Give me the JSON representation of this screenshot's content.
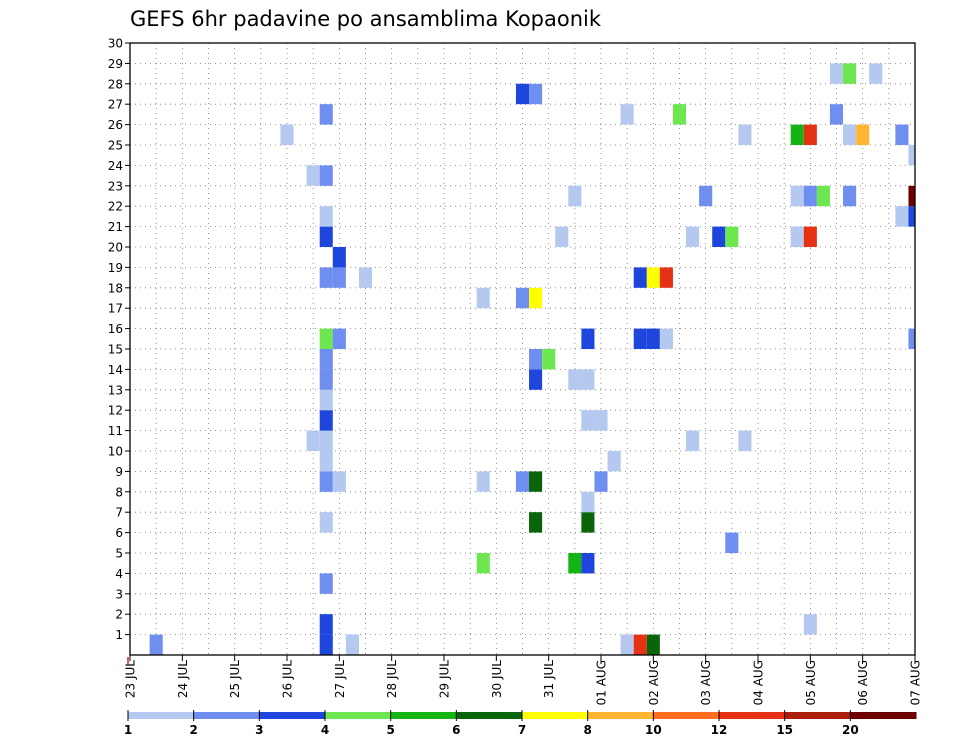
{
  "chart_data": {
    "type": "heatmap",
    "title": "GEFS 6hr padavine po ansamblima Kopaonik",
    "xlabel": "",
    "ylabel": "",
    "x_start": "23 JUL 00Z",
    "x_end": "07 AUG 00Z",
    "time_step_hours": 6,
    "x_tick_labels": [
      "23 JUL",
      "24 JUL",
      "25 JUL",
      "26 JUL",
      "27 JUL",
      "28 JUL",
      "29 JUL",
      "30 JUL",
      "31 JUL",
      "01 AUG",
      "02 AUG",
      "03 AUG",
      "04 AUG",
      "05 AUG",
      "06 AUG",
      "07 AUG"
    ],
    "y_tick_labels": [
      "1",
      "2",
      "3",
      "4",
      "5",
      "6",
      "7",
      "8",
      "9",
      "10",
      "11",
      "12",
      "13",
      "14",
      "15",
      "16",
      "17",
      "18",
      "19",
      "20",
      "21",
      "22",
      "23",
      "24",
      "25",
      "26",
      "27",
      "28",
      "29",
      "30"
    ],
    "ylim": [
      0,
      30
    ],
    "grid": true,
    "legend_position": "bottom",
    "legend_levels": [
      "1",
      "2",
      "3",
      "4",
      "5",
      "6",
      "7",
      "8",
      "10",
      "12",
      "15",
      "20"
    ],
    "colors": [
      "#b4c8f0",
      "#6e8ef0",
      "#1e46dc",
      "#6ee650",
      "#14b414",
      "#0a640a",
      "#ffff00",
      "#ffb432",
      "#ff6e1e",
      "#e63214",
      "#aa1e0a",
      "#6e0000"
    ],
    "cells": [
      {
        "m": 0,
        "t": "23 JUL 12Z",
        "c": 1
      },
      {
        "m": 0,
        "t": "26 JUL 18Z",
        "c": 2
      },
      {
        "m": 0,
        "t": "27 JUL 06Z",
        "c": 0
      },
      {
        "m": 0,
        "t": "01 AUG 12Z",
        "c": 0
      },
      {
        "m": 0,
        "t": "01 AUG 18Z",
        "c": 9
      },
      {
        "m": 0,
        "t": "02 AUG 00Z",
        "c": 5
      },
      {
        "m": 1,
        "t": "26 JUL 18Z",
        "c": 2
      },
      {
        "m": 1,
        "t": "05 AUG 00Z",
        "c": 0
      },
      {
        "m": 3,
        "t": "26 JUL 18Z",
        "c": 1
      },
      {
        "m": 4,
        "t": "29 JUL 18Z",
        "c": 3
      },
      {
        "m": 4,
        "t": "31 JUL 12Z",
        "c": 4
      },
      {
        "m": 4,
        "t": "31 JUL 18Z",
        "c": 2
      },
      {
        "m": 5,
        "t": "03 AUG 12Z",
        "c": 1
      },
      {
        "m": 6,
        "t": "26 JUL 18Z",
        "c": 0
      },
      {
        "m": 6,
        "t": "30 JUL 18Z",
        "c": 5
      },
      {
        "m": 6,
        "t": "31 JUL 18Z",
        "c": 5
      },
      {
        "m": 7,
        "t": "31 JUL 18Z",
        "c": 0
      },
      {
        "m": 8,
        "t": "26 JUL 18Z",
        "c": 1
      },
      {
        "m": 8,
        "t": "27 JUL 00Z",
        "c": 0
      },
      {
        "m": 8,
        "t": "29 JUL 18Z",
        "c": 0
      },
      {
        "m": 8,
        "t": "30 JUL 12Z",
        "c": 1
      },
      {
        "m": 8,
        "t": "30 JUL 18Z",
        "c": 5
      },
      {
        "m": 8,
        "t": "01 AUG 00Z",
        "c": 1
      },
      {
        "m": 9,
        "t": "26 JUL 18Z",
        "c": 0
      },
      {
        "m": 9,
        "t": "01 AUG 06Z",
        "c": 0
      },
      {
        "m": 10,
        "t": "26 JUL 12Z",
        "c": 0
      },
      {
        "m": 10,
        "t": "26 JUL 18Z",
        "c": 0
      },
      {
        "m": 10,
        "t": "02 AUG 18Z",
        "c": 0
      },
      {
        "m": 10,
        "t": "03 AUG 18Z",
        "c": 0
      },
      {
        "m": 11,
        "t": "26 JUL 18Z",
        "c": 2
      },
      {
        "m": 11,
        "t": "31 JUL 18Z",
        "c": 0
      },
      {
        "m": 11,
        "t": "01 AUG 00Z",
        "c": 0
      },
      {
        "m": 12,
        "t": "26 JUL 18Z",
        "c": 0
      },
      {
        "m": 13,
        "t": "26 JUL 18Z",
        "c": 1
      },
      {
        "m": 13,
        "t": "30 JUL 18Z",
        "c": 2
      },
      {
        "m": 13,
        "t": "31 JUL 12Z",
        "c": 0
      },
      {
        "m": 13,
        "t": "31 JUL 18Z",
        "c": 0
      },
      {
        "m": 14,
        "t": "26 JUL 18Z",
        "c": 1
      },
      {
        "m": 14,
        "t": "30 JUL 18Z",
        "c": 1
      },
      {
        "m": 14,
        "t": "31 JUL 00Z",
        "c": 3
      },
      {
        "m": 15,
        "t": "26 JUL 18Z",
        "c": 3
      },
      {
        "m": 15,
        "t": "27 JUL 00Z",
        "c": 1
      },
      {
        "m": 15,
        "t": "31 JUL 18Z",
        "c": 2
      },
      {
        "m": 15,
        "t": "01 AUG 18Z",
        "c": 2
      },
      {
        "m": 15,
        "t": "02 AUG 00Z",
        "c": 2
      },
      {
        "m": 15,
        "t": "02 AUG 06Z",
        "c": 0
      },
      {
        "m": 15,
        "t": "07 AUG 00Z",
        "c": 1
      },
      {
        "m": 17,
        "t": "29 JUL 18Z",
        "c": 0
      },
      {
        "m": 17,
        "t": "30 JUL 12Z",
        "c": 1
      },
      {
        "m": 17,
        "t": "30 JUL 18Z",
        "c": 6
      },
      {
        "m": 18,
        "t": "26 JUL 18Z",
        "c": 1
      },
      {
        "m": 18,
        "t": "27 JUL 00Z",
        "c": 1
      },
      {
        "m": 18,
        "t": "27 JUL 12Z",
        "c": 0
      },
      {
        "m": 18,
        "t": "01 AUG 18Z",
        "c": 2
      },
      {
        "m": 18,
        "t": "02 AUG 00Z",
        "c": 6
      },
      {
        "m": 18,
        "t": "02 AUG 06Z",
        "c": 9
      },
      {
        "m": 19,
        "t": "27 JUL 00Z",
        "c": 2
      },
      {
        "m": 20,
        "t": "26 JUL 18Z",
        "c": 2
      },
      {
        "m": 20,
        "t": "31 JUL 06Z",
        "c": 0
      },
      {
        "m": 20,
        "t": "02 AUG 18Z",
        "c": 0
      },
      {
        "m": 20,
        "t": "03 AUG 06Z",
        "c": 2
      },
      {
        "m": 20,
        "t": "03 AUG 12Z",
        "c": 3
      },
      {
        "m": 20,
        "t": "04 AUG 18Z",
        "c": 0
      },
      {
        "m": 20,
        "t": "05 AUG 00Z",
        "c": 9
      },
      {
        "m": 21,
        "t": "26 JUL 18Z",
        "c": 0
      },
      {
        "m": 21,
        "t": "06 AUG 18Z",
        "c": 0
      },
      {
        "m": 21,
        "t": "07 AUG 00Z",
        "c": 2
      },
      {
        "m": 22,
        "t": "31 JUL 12Z",
        "c": 0
      },
      {
        "m": 22,
        "t": "03 AUG 00Z",
        "c": 1
      },
      {
        "m": 22,
        "t": "04 AUG 18Z",
        "c": 0
      },
      {
        "m": 22,
        "t": "05 AUG 00Z",
        "c": 1
      },
      {
        "m": 22,
        "t": "05 AUG 06Z",
        "c": 3
      },
      {
        "m": 22,
        "t": "05 AUG 18Z",
        "c": 1
      },
      {
        "m": 22,
        "t": "07 AUG 00Z",
        "c": 11
      },
      {
        "m": 23,
        "t": "26 JUL 12Z",
        "c": 0
      },
      {
        "m": 23,
        "t": "26 JUL 18Z",
        "c": 1
      },
      {
        "m": 24,
        "t": "07 AUG 00Z",
        "c": 0
      },
      {
        "m": 25,
        "t": "26 JUL 00Z",
        "c": 0
      },
      {
        "m": 25,
        "t": "03 AUG 18Z",
        "c": 0
      },
      {
        "m": 25,
        "t": "04 AUG 18Z",
        "c": 4
      },
      {
        "m": 25,
        "t": "05 AUG 00Z",
        "c": 9
      },
      {
        "m": 25,
        "t": "05 AUG 18Z",
        "c": 0
      },
      {
        "m": 25,
        "t": "06 AUG 00Z",
        "c": 7
      },
      {
        "m": 25,
        "t": "06 AUG 18Z",
        "c": 1
      },
      {
        "m": 26,
        "t": "26 JUL 18Z",
        "c": 1
      },
      {
        "m": 26,
        "t": "01 AUG 12Z",
        "c": 0
      },
      {
        "m": 26,
        "t": "02 AUG 12Z",
        "c": 3
      },
      {
        "m": 26,
        "t": "05 AUG 12Z",
        "c": 1
      },
      {
        "m": 27,
        "t": "30 JUL 12Z",
        "c": 2
      },
      {
        "m": 27,
        "t": "30 JUL 18Z",
        "c": 1
      },
      {
        "m": 28,
        "t": "05 AUG 12Z",
        "c": 0
      },
      {
        "m": 28,
        "t": "05 AUG 18Z",
        "c": 3
      },
      {
        "m": 28,
        "t": "06 AUG 06Z",
        "c": 0
      }
    ]
  }
}
